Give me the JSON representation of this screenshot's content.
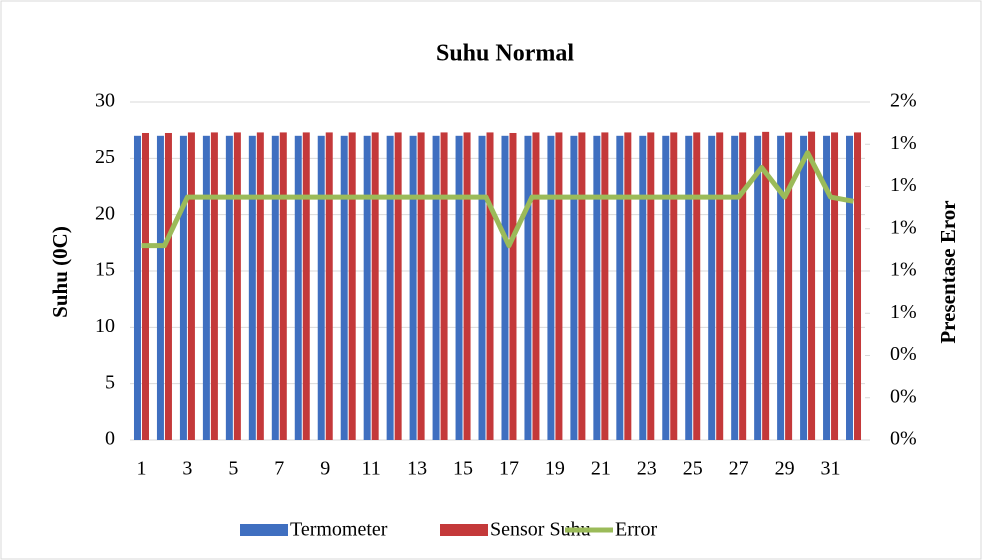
{
  "chart_data": {
    "type": "bar",
    "title": "Suhu Normal",
    "y_label": "Suhu (0C)",
    "y2_label": "Presentase Eror",
    "categories": [
      1,
      null,
      3,
      null,
      5,
      null,
      7,
      null,
      9,
      null,
      11,
      null,
      13,
      null,
      15,
      null,
      17,
      null,
      19,
      null,
      21,
      null,
      23,
      null,
      25,
      null,
      27,
      null,
      29,
      null,
      31,
      null
    ],
    "ylim": [
      0,
      30
    ],
    "yticks": [
      0,
      5,
      10,
      15,
      20,
      25,
      30
    ],
    "y2lim": [
      0,
      1.6
    ],
    "y2ticks": [
      {
        "value": 0,
        "label": "0%"
      },
      {
        "value": 0.2,
        "label": "0%"
      },
      {
        "value": 0.4,
        "label": "0%"
      },
      {
        "value": 0.6,
        "label": "1%"
      },
      {
        "value": 0.8,
        "label": "1%"
      },
      {
        "value": 1.0,
        "label": "1%"
      },
      {
        "value": 1.2,
        "label": "1%"
      },
      {
        "value": 1.4,
        "label": "1%"
      },
      {
        "value": 1.6,
        "label": "2%"
      }
    ],
    "grid": true,
    "legend": "bottom",
    "series": [
      {
        "name": "Termometer",
        "type": "bar",
        "color": "#3f6fc0",
        "values": [
          27,
          27,
          27,
          27,
          27,
          27,
          27,
          27,
          27,
          27,
          27,
          27,
          27,
          27,
          27,
          27,
          27,
          27,
          27,
          27,
          27,
          27,
          27,
          27,
          27,
          27,
          27,
          27,
          27,
          27,
          27,
          27
        ]
      },
      {
        "name": "Sensor Suhu",
        "type": "bar",
        "color": "#c4393a",
        "values": [
          27.25,
          27.25,
          27.3,
          27.3,
          27.3,
          27.3,
          27.3,
          27.3,
          27.3,
          27.3,
          27.3,
          27.3,
          27.3,
          27.3,
          27.3,
          27.3,
          27.25,
          27.3,
          27.3,
          27.3,
          27.3,
          27.3,
          27.3,
          27.3,
          27.3,
          27.3,
          27.3,
          27.35,
          27.3,
          27.37,
          27.3,
          27.3
        ]
      },
      {
        "name": "Error",
        "type": "line",
        "axis": "y2",
        "color": "#9bbb59",
        "values": [
          0.92,
          0.92,
          1.15,
          1.15,
          1.15,
          1.15,
          1.15,
          1.15,
          1.15,
          1.15,
          1.15,
          1.15,
          1.15,
          1.15,
          1.15,
          1.15,
          0.92,
          1.15,
          1.15,
          1.15,
          1.15,
          1.15,
          1.15,
          1.15,
          1.15,
          1.15,
          1.15,
          1.29,
          1.15,
          1.36,
          1.15,
          1.13
        ]
      }
    ]
  }
}
